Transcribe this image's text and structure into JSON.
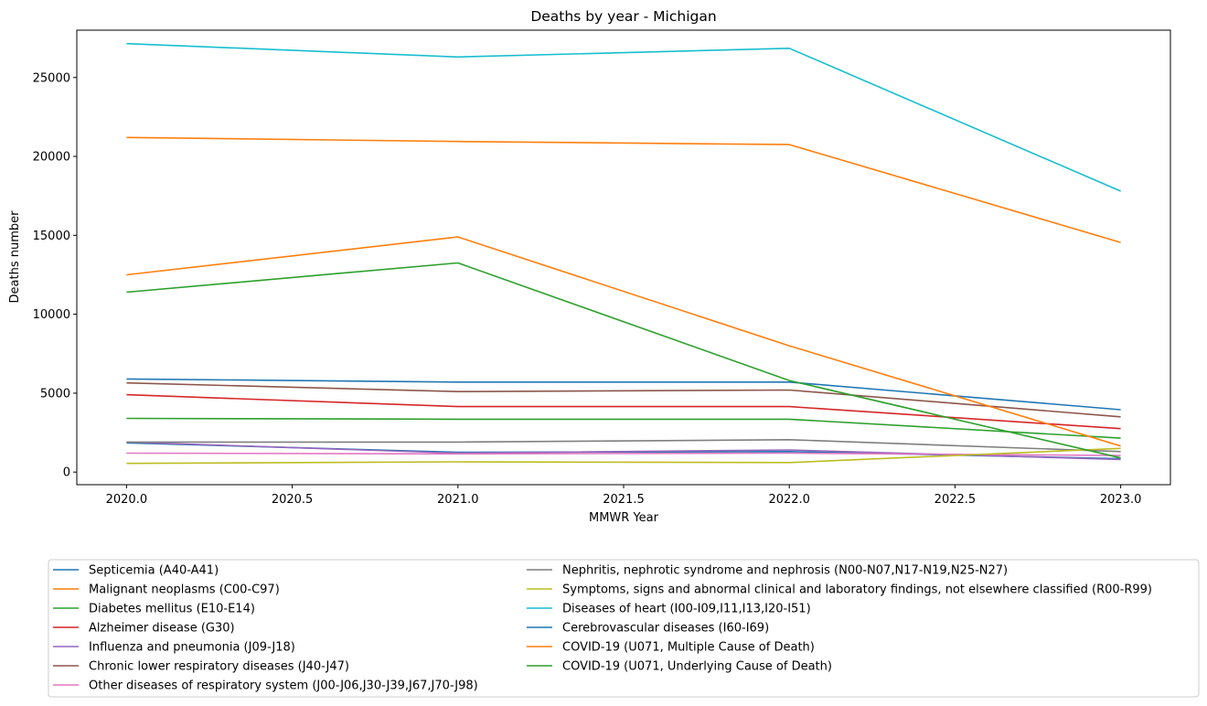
{
  "chart_data": {
    "type": "line",
    "title": "Deaths by year - Michigan",
    "xlabel": "MMWR Year",
    "ylabel": "Deaths number",
    "x": [
      2020,
      2021,
      2022,
      2023
    ],
    "xlim": [
      2019.85,
      2023.15
    ],
    "ylim": [
      -800,
      28000
    ],
    "xticks": [
      2020.0,
      2020.5,
      2021.0,
      2021.5,
      2022.0,
      2022.5,
      2023.0
    ],
    "xtick_labels": [
      "2020.0",
      "2020.5",
      "2021.0",
      "2021.5",
      "2022.0",
      "2022.5",
      "2023.0"
    ],
    "yticks": [
      0,
      5000,
      10000,
      15000,
      20000,
      25000
    ],
    "ytick_labels": [
      "0",
      "5000",
      "10000",
      "15000",
      "20000",
      "25000"
    ],
    "grid": false,
    "legend_position": "below the plot, two columns",
    "series": [
      {
        "name": "Septicemia (A40-A41)",
        "color": "#1f77b4",
        "values": [
          1850,
          1250,
          1300,
          850
        ]
      },
      {
        "name": "Malignant neoplasms (C00-C97)",
        "color": "#ff7f0e",
        "values": [
          21200,
          20950,
          20750,
          14550
        ]
      },
      {
        "name": "Diabetes mellitus (E10-E14)",
        "color": "#2ca02c",
        "values": [
          3400,
          3350,
          3350,
          2150
        ]
      },
      {
        "name": "Alzheimer disease (G30)",
        "color": "#d62728",
        "values": [
          4900,
          4150,
          4150,
          2750
        ]
      },
      {
        "name": "Influenza and pneumonia (J09-J18)",
        "color": "#9467bd",
        "values": [
          1900,
          1200,
          1400,
          800
        ]
      },
      {
        "name": "Chronic lower respiratory diseases (J40-J47)",
        "color": "#8c564b",
        "values": [
          5650,
          5100,
          5200,
          3500
        ]
      },
      {
        "name": "Other diseases of respiratory system (J00-J06,J30-J39,J67,J70-J98)",
        "color": "#e377c2",
        "values": [
          1200,
          1150,
          1200,
          1050
        ]
      },
      {
        "name": "Nephritis, nephrotic syndrome and nephrosis (N00-N07,N17-N19,N25-N27)",
        "color": "#7f7f7f",
        "values": [
          1900,
          1900,
          2050,
          1300
        ]
      },
      {
        "name": "Symptoms, signs and abnormal clinical and laboratory findings, not elsewhere classified (R00-R99)",
        "color": "#bcbd22",
        "values": [
          550,
          650,
          600,
          1500
        ]
      },
      {
        "name": "Diseases of heart (I00-I09,I11,I13,I20-I51)",
        "color": "#17becf",
        "values": [
          27150,
          26300,
          26850,
          17800
        ]
      },
      {
        "name": "Cerebrovascular diseases (I60-I69)",
        "color": "#1f77b4",
        "values": [
          5900,
          5700,
          5700,
          3950
        ]
      },
      {
        "name": "COVID-19 (U071, Multiple Cause of Death)",
        "color": "#ff7f0e",
        "values": [
          12500,
          14900,
          8000,
          1650
        ]
      },
      {
        "name": "COVID-19 (U071, Underlying Cause of Death)",
        "color": "#2ca02c",
        "values": [
          11400,
          13250,
          5800,
          900
        ]
      }
    ]
  }
}
